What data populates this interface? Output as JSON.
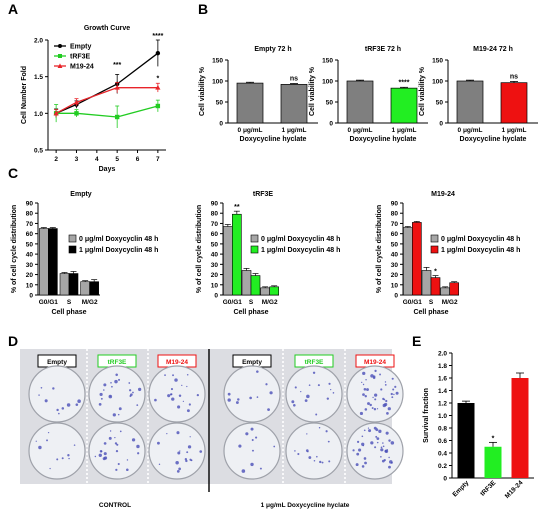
{
  "panels": {
    "A": "A",
    "B": "B",
    "C": "C",
    "D": "D",
    "E": "E"
  },
  "chart_data": [
    {
      "id": "A",
      "type": "line",
      "title": "Growth Curve",
      "xlabel": "Days",
      "ylabel": "Cell Number Fold",
      "x": [
        2,
        3,
        5,
        7
      ],
      "xlim": [
        1.6,
        7.4
      ],
      "ylim": [
        0.5,
        2.0
      ],
      "xticks": [
        2,
        3,
        4,
        5,
        6,
        7
      ],
      "yticks": [
        0.5,
        1.0,
        1.5,
        2.0
      ],
      "xtick_labels": [
        "2",
        "3",
        "4",
        "5",
        "6",
        "7"
      ],
      "ytick_labels": [
        "0.5",
        "1.0",
        "1.5",
        "2.0"
      ],
      "legend_position": "top-left",
      "series": [
        {
          "name": "Empty",
          "color": "#000000",
          "marker": "circle",
          "values": [
            1.0,
            1.12,
            1.4,
            1.82
          ],
          "errors": [
            0.06,
            0.05,
            0.13,
            0.18
          ]
        },
        {
          "name": "tRF3E",
          "color": "#22cc22",
          "marker": "square",
          "values": [
            1.0,
            1.0,
            0.95,
            1.1
          ],
          "errors": [
            0.12,
            0.05,
            0.15,
            0.08
          ]
        },
        {
          "name": "M19-24",
          "color": "#e8242a",
          "marker": "triangle",
          "values": [
            1.0,
            1.15,
            1.35,
            1.35
          ],
          "errors": [
            0.05,
            0.05,
            0.07,
            0.06
          ]
        }
      ],
      "annotations": [
        {
          "x": 5,
          "y": 1.63,
          "text": "***"
        },
        {
          "x": 7,
          "y": 2.03,
          "text": "****"
        },
        {
          "x": 7,
          "y": 1.45,
          "text": "*"
        }
      ]
    },
    {
      "id": "B1",
      "type": "bar",
      "title": "Empty 72 h",
      "ylabel": "Cell viability %",
      "xlabel": "Doxycycline hyclate",
      "categories": [
        "0 μg/mL",
        "1 μg/mL"
      ],
      "values": [
        95,
        92
      ],
      "errors": [
        2,
        2
      ],
      "colors": [
        "#7f7f7f",
        "#7f7f7f"
      ],
      "ylim": [
        0,
        150
      ],
      "yticks": [
        0,
        50,
        100,
        150
      ],
      "ytick_labels": [
        "0",
        "50",
        "100",
        "150"
      ],
      "sig": "ns"
    },
    {
      "id": "B2",
      "type": "bar",
      "title": "tRF3E 72 h",
      "ylabel": "Cell viability %",
      "xlabel": "Doxycycline hyclate",
      "categories": [
        "0 μg/mL",
        "1 μg/mL"
      ],
      "values": [
        100,
        83
      ],
      "errors": [
        2,
        2
      ],
      "colors": [
        "#7f7f7f",
        "#22ee22"
      ],
      "ylim": [
        0,
        150
      ],
      "yticks": [
        0,
        50,
        100,
        150
      ],
      "ytick_labels": [
        "0",
        "50",
        "100",
        "150"
      ],
      "sig": "****"
    },
    {
      "id": "B3",
      "type": "bar",
      "title": "M19-24 72 h",
      "ylabel": "Cell viability %",
      "xlabel": "Doxycycline hyclate",
      "categories": [
        "0 μg/mL",
        "1 μg/mL"
      ],
      "values": [
        100,
        96
      ],
      "errors": [
        2,
        3
      ],
      "colors": [
        "#7f7f7f",
        "#ee1111"
      ],
      "ylim": [
        0,
        150
      ],
      "yticks": [
        0,
        50,
        100,
        150
      ],
      "ytick_labels": [
        "0",
        "50",
        "100",
        "150"
      ],
      "sig": "ns"
    },
    {
      "id": "C1",
      "type": "bar",
      "title": "Empty",
      "xlabel": "Cell phase",
      "ylabel": "% of cell cycle distribution",
      "categories": [
        "G0/G1",
        "S",
        "M/G2"
      ],
      "ylim": [
        0,
        90
      ],
      "yticks": [
        0,
        10,
        20,
        30,
        40,
        50,
        60,
        70,
        80,
        90
      ],
      "ytick_labels": [
        "0",
        "10",
        "20",
        "30",
        "40",
        "50",
        "60",
        "70",
        "80",
        "90"
      ],
      "series": [
        {
          "name": "0 μg/ml Doxycyclin 48 h",
          "color": "#a6a6a6",
          "values": [
            65,
            21,
            13
          ],
          "errors": [
            1,
            1,
            1
          ]
        },
        {
          "name": "1 μg/ml Doxycyclin 48 h",
          "color": "#000000",
          "values": [
            65,
            21,
            13
          ],
          "errors": [
            1,
            2,
            2
          ]
        }
      ],
      "annotations": []
    },
    {
      "id": "C2",
      "type": "bar",
      "title": "tRF3E",
      "xlabel": "Cell phase",
      "ylabel": "% of cell cycle distribution",
      "categories": [
        "G0/G1",
        "S",
        "M/G2"
      ],
      "ylim": [
        0,
        90
      ],
      "yticks": [
        0,
        10,
        20,
        30,
        40,
        50,
        60,
        70,
        80,
        90
      ],
      "ytick_labels": [
        "0",
        "10",
        "20",
        "30",
        "40",
        "50",
        "60",
        "70",
        "80",
        "90"
      ],
      "series": [
        {
          "name": "0 μg/ml Doxycyclin 48 h",
          "color": "#a6a6a6",
          "values": [
            67,
            24,
            7
          ],
          "errors": [
            2,
            2,
            1
          ]
        },
        {
          "name": "1 μg/ml Doxycyclin 48 h",
          "color": "#22ee22",
          "values": [
            79,
            19,
            8
          ],
          "errors": [
            3,
            2,
            1
          ]
        }
      ],
      "annotations": [
        {
          "category": 0,
          "series": 1,
          "text": "**"
        }
      ]
    },
    {
      "id": "C3",
      "type": "bar",
      "title": "M19-24",
      "xlabel": "Cell phase",
      "ylabel": "% of cell cycle distribution",
      "categories": [
        "G0/G1",
        "S",
        "M/G2"
      ],
      "ylim": [
        0,
        90
      ],
      "yticks": [
        0,
        10,
        20,
        30,
        40,
        50,
        60,
        70,
        80,
        90
      ],
      "ytick_labels": [
        "0",
        "10",
        "20",
        "30",
        "40",
        "50",
        "60",
        "70",
        "80",
        "90"
      ],
      "series": [
        {
          "name": "0 μg/ml Doxycyclin 48 h",
          "color": "#a6a6a6",
          "values": [
            66,
            24,
            7
          ],
          "errors": [
            1,
            3,
            1
          ]
        },
        {
          "name": "1 μg/ml Doxycyclin 48 h",
          "color": "#ee1111",
          "values": [
            71,
            17,
            12
          ],
          "errors": [
            1,
            2,
            1
          ]
        }
      ],
      "annotations": [
        {
          "category": 1,
          "series": 1,
          "text": "*"
        }
      ]
    },
    {
      "id": "E",
      "type": "bar",
      "ylabel": "Survival fraction",
      "categories": [
        "Empty",
        "tRF3E",
        "M19-24"
      ],
      "values": [
        1.2,
        0.5,
        1.6
      ],
      "errors": [
        0.03,
        0.07,
        0.08
      ],
      "colors": [
        "#000000",
        "#22ee22",
        "#ee1111"
      ],
      "ylim": [
        0,
        2.0
      ],
      "yticks": [
        0,
        0.2,
        0.4,
        0.6,
        0.8,
        1.0,
        1.2,
        1.4,
        1.6,
        1.8,
        2.0
      ],
      "ytick_labels": [
        "0",
        "0.2",
        "0.4",
        "0.6",
        "0.8",
        "1.0",
        "1.2",
        "1.4",
        "1.6",
        "1.8",
        "2.0"
      ],
      "annotations": [
        {
          "category": 1,
          "text": "*"
        }
      ]
    }
  ],
  "panel_d": {
    "columns": [
      {
        "label": "Empty",
        "color": "#000000"
      },
      {
        "label": "tRF3E",
        "color": "#22cc22"
      },
      {
        "label": "M19-24",
        "color": "#ee1111"
      },
      {
        "label": "Empty",
        "color": "#000000"
      },
      {
        "label": "tRF3E",
        "color": "#22cc22"
      },
      {
        "label": "M19-24",
        "color": "#ee1111"
      }
    ],
    "group_labels": [
      "CONTROL",
      "1 μg/mL Doxycycline hyclate"
    ]
  }
}
